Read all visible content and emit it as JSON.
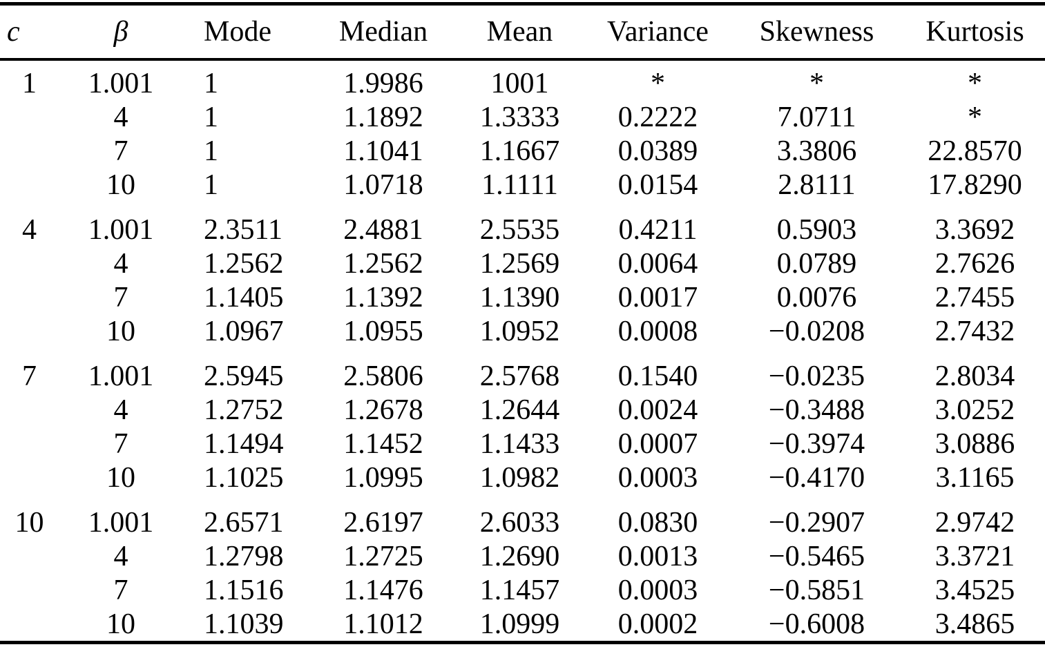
{
  "table": {
    "columns": [
      "c",
      "β",
      "Mode",
      "Median",
      "Mean",
      "Variance",
      "Skewness",
      "Kurtosis"
    ],
    "missing_value_symbol": "*",
    "groups": [
      {
        "c": "1",
        "rows": [
          [
            "1.001",
            "1",
            "1.9986",
            "1001",
            "*",
            "*",
            "*"
          ],
          [
            "4",
            "1",
            "1.1892",
            "1.3333",
            "0.2222",
            "7.0711",
            "*"
          ],
          [
            "7",
            "1",
            "1.1041",
            "1.1667",
            "0.0389",
            "3.3806",
            "22.8570"
          ],
          [
            "10",
            "1",
            "1.0718",
            "1.1111",
            "0.0154",
            "2.8111",
            "17.8290"
          ]
        ]
      },
      {
        "c": "4",
        "rows": [
          [
            "1.001",
            "2.3511",
            "2.4881",
            "2.5535",
            "0.4211",
            "0.5903",
            "3.3692"
          ],
          [
            "4",
            "1.2562",
            "1.2562",
            "1.2569",
            "0.0064",
            "0.0789",
            "2.7626"
          ],
          [
            "7",
            "1.1405",
            "1.1392",
            "1.1390",
            "0.0017",
            "0.0076",
            "2.7455"
          ],
          [
            "10",
            "1.0967",
            "1.0955",
            "1.0952",
            "0.0008",
            "−0.0208",
            "2.7432"
          ]
        ]
      },
      {
        "c": "7",
        "rows": [
          [
            "1.001",
            "2.5945",
            "2.5806",
            "2.5768",
            "0.1540",
            "−0.0235",
            "2.8034"
          ],
          [
            "4",
            "1.2752",
            "1.2678",
            "1.2644",
            "0.0024",
            "−0.3488",
            "3.0252"
          ],
          [
            "7",
            "1.1494",
            "1.1452",
            "1.1433",
            "0.0007",
            "−0.3974",
            "3.0886"
          ],
          [
            "10",
            "1.1025",
            "1.0995",
            "1.0982",
            "0.0003",
            "−0.4170",
            "3.1165"
          ]
        ]
      },
      {
        "c": "10",
        "rows": [
          [
            "1.001",
            "2.6571",
            "2.6197",
            "2.6033",
            "0.0830",
            "−0.2907",
            "2.9742"
          ],
          [
            "4",
            "1.2798",
            "1.2725",
            "1.2690",
            "0.0013",
            "−0.5465",
            "3.3721"
          ],
          [
            "7",
            "1.1516",
            "1.1476",
            "1.1457",
            "0.0003",
            "−0.5851",
            "3.4525"
          ],
          [
            "10",
            "1.1039",
            "1.1012",
            "1.0999",
            "0.0002",
            "−0.6008",
            "3.4865"
          ]
        ]
      }
    ]
  },
  "chart_data": {
    "type": "table",
    "columns": [
      "c",
      "β",
      "Mode",
      "Median",
      "Mean",
      "Variance",
      "Skewness",
      "Kurtosis"
    ],
    "rows": [
      [
        "1",
        "1.001",
        "1",
        "1.9986",
        "1001",
        "*",
        "*",
        "*"
      ],
      [
        "",
        "4",
        "1",
        "1.1892",
        "1.3333",
        "0.2222",
        "7.0711",
        "*"
      ],
      [
        "",
        "7",
        "1",
        "1.1041",
        "1.1667",
        "0.0389",
        "3.3806",
        "22.8570"
      ],
      [
        "",
        "10",
        "1",
        "1.0718",
        "1.1111",
        "0.0154",
        "2.8111",
        "17.8290"
      ],
      [
        "4",
        "1.001",
        "2.3511",
        "2.4881",
        "2.5535",
        "0.4211",
        "0.5903",
        "3.3692"
      ],
      [
        "",
        "4",
        "1.2562",
        "1.2562",
        "1.2569",
        "0.0064",
        "0.0789",
        "2.7626"
      ],
      [
        "",
        "7",
        "1.1405",
        "1.1392",
        "1.1390",
        "0.0017",
        "0.0076",
        "2.7455"
      ],
      [
        "",
        "10",
        "1.0967",
        "1.0955",
        "1.0952",
        "0.0008",
        "−0.0208",
        "2.7432"
      ],
      [
        "7",
        "1.001",
        "2.5945",
        "2.5806",
        "2.5768",
        "0.1540",
        "−0.0235",
        "2.8034"
      ],
      [
        "",
        "4",
        "1.2752",
        "1.2678",
        "1.2644",
        "0.0024",
        "−0.3488",
        "3.0252"
      ],
      [
        "",
        "7",
        "1.1494",
        "1.1452",
        "1.1433",
        "0.0007",
        "−0.3974",
        "3.0886"
      ],
      [
        "",
        "10",
        "1.1025",
        "1.0995",
        "1.0982",
        "0.0003",
        "−0.4170",
        "3.1165"
      ],
      [
        "10",
        "1.001",
        "2.6571",
        "2.6197",
        "2.6033",
        "0.0830",
        "−0.2907",
        "2.9742"
      ],
      [
        "",
        "4",
        "1.2798",
        "1.2725",
        "1.2690",
        "0.0013",
        "−0.5465",
        "3.3721"
      ],
      [
        "",
        "7",
        "1.1516",
        "1.1476",
        "1.1457",
        "0.0003",
        "−0.5851",
        "3.4525"
      ],
      [
        "",
        "10",
        "1.1039",
        "1.1012",
        "1.0999",
        "0.0002",
        "−0.6008",
        "3.4865"
      ]
    ]
  }
}
